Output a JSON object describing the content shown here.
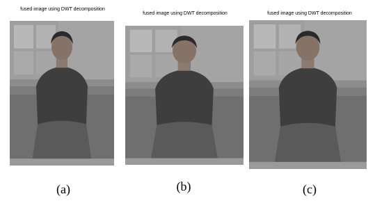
{
  "figures": [
    {
      "title": "fused image using DWT decomposition",
      "caption": "(a)"
    },
    {
      "title": "fused image using DWT decomposition",
      "caption": "(b)"
    },
    {
      "title": "fused image using DWT decomposition",
      "caption": "(c)"
    }
  ]
}
